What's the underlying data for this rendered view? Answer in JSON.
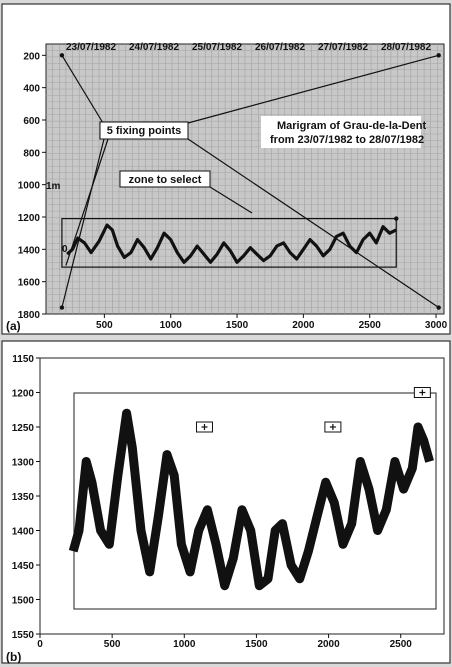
{
  "chart_data": [
    {
      "type": "line",
      "panel_label": "(a)",
      "title": "Marigram of Grau-de-la-Dent",
      "subtitle": "from  23/07/1982 to 28/07/1982",
      "date_labels": [
        "23/07/1982",
        "24/07/1982",
        "25/07/1982",
        "26/07/1982",
        "27/07/1982",
        "28/07/1982"
      ],
      "x_ticks": [
        500,
        1000,
        1500,
        2000,
        2500,
        3000
      ],
      "y_ticks": [
        200,
        400,
        600,
        800,
        1000,
        1200,
        1400,
        1600,
        1800
      ],
      "xlim": [
        60,
        3060
      ],
      "ylim": [
        1800,
        130
      ],
      "y_inverted": true,
      "annotations": {
        "fixing_points": "5 fixing points",
        "zone": "zone to select",
        "scale_1m": "1m",
        "zero": "0"
      },
      "fixing_points": [
        [
          180,
          200
        ],
        [
          3020,
          200
        ],
        [
          180,
          1760
        ],
        [
          3020,
          1760
        ],
        [
          2700,
          1210
        ]
      ],
      "zone_box": {
        "x": [
          180,
          2700
        ],
        "y": [
          1210,
          1510
        ]
      },
      "series": [
        {
          "x": [
            220,
            260,
            300,
            350,
            400,
            460,
            520,
            560,
            600,
            650,
            700,
            750,
            800,
            850,
            900,
            950,
            1000,
            1050,
            1100,
            1150,
            1200,
            1250,
            1300,
            1350,
            1400,
            1450,
            1500,
            1550,
            1600,
            1650,
            1700,
            1750,
            1800,
            1850,
            1900,
            1950,
            2000,
            2050,
            2100,
            2150,
            2200,
            2250,
            2300,
            2350,
            2400,
            2450,
            2500,
            2550,
            2600,
            2650,
            2700
          ],
          "y": [
            1430,
            1400,
            1330,
            1360,
            1420,
            1350,
            1250,
            1280,
            1380,
            1450,
            1420,
            1340,
            1390,
            1460,
            1390,
            1300,
            1340,
            1420,
            1480,
            1440,
            1380,
            1430,
            1480,
            1430,
            1360,
            1410,
            1480,
            1440,
            1390,
            1430,
            1470,
            1440,
            1380,
            1360,
            1420,
            1460,
            1400,
            1340,
            1380,
            1440,
            1400,
            1320,
            1300,
            1380,
            1420,
            1340,
            1300,
            1360,
            1260,
            1300,
            1280
          ]
        }
      ]
    },
    {
      "type": "line",
      "panel_label": "(b)",
      "x_ticks": [
        0,
        500,
        1000,
        1500,
        2000,
        2500
      ],
      "y_ticks": [
        1150,
        1200,
        1250,
        1300,
        1350,
        1400,
        1450,
        1500,
        1550
      ],
      "xlim": [
        0,
        2800
      ],
      "ylim": [
        1550,
        1150
      ],
      "y_inverted": true,
      "markers": [
        [
          1140,
          1250
        ],
        [
          2030,
          1250
        ],
        [
          2650,
          1200
        ]
      ],
      "series": [
        {
          "x": [
            230,
            270,
            320,
            360,
            420,
            480,
            540,
            600,
            640,
            700,
            760,
            820,
            880,
            930,
            980,
            1040,
            1100,
            1160,
            1220,
            1280,
            1340,
            1400,
            1460,
            1520,
            1580,
            1630,
            1680,
            1740,
            1800,
            1860,
            1920,
            1980,
            2040,
            2100,
            2160,
            2220,
            2280,
            2340,
            2400,
            2460,
            2520,
            2580,
            2620,
            2660,
            2700
          ],
          "y": [
            1430,
            1400,
            1300,
            1330,
            1400,
            1420,
            1320,
            1230,
            1280,
            1400,
            1460,
            1380,
            1290,
            1320,
            1420,
            1460,
            1400,
            1370,
            1420,
            1480,
            1440,
            1370,
            1400,
            1480,
            1470,
            1400,
            1390,
            1450,
            1470,
            1430,
            1380,
            1330,
            1360,
            1420,
            1390,
            1300,
            1340,
            1400,
            1370,
            1300,
            1340,
            1310,
            1250,
            1270,
            1300
          ]
        }
      ]
    }
  ]
}
